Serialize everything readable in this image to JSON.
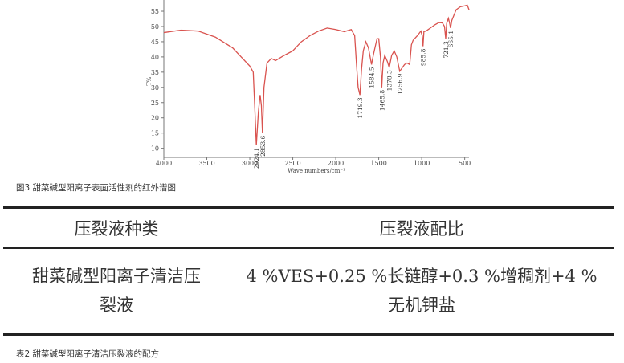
{
  "figure_caption": "图3 甜菜碱型阳离子表面活性剂的红外谱图",
  "chart_data": {
    "type": "line",
    "xlabel": "Wave numbers/cm⁻¹",
    "ylabel": "T%",
    "xlim": [
      4000,
      450
    ],
    "ylim": [
      7,
      58.7
    ],
    "x_reversed": true,
    "xticks": [
      4000,
      3500,
      3000,
      2500,
      2000,
      1500,
      1000,
      500
    ],
    "yticks": [
      10,
      15,
      20,
      25,
      30,
      35,
      40,
      45,
      50,
      55
    ],
    "grid": false,
    "line_color": "#d9534f",
    "series": [
      {
        "x": [
          4000,
          3800,
          3600,
          3400,
          3200,
          3100,
          3000,
          2960,
          2940,
          2924,
          2900,
          2880,
          2865,
          2853,
          2835,
          2800,
          2750,
          2700,
          2600,
          2500,
          2400,
          2300,
          2200,
          2100,
          2000,
          1900,
          1820,
          1780,
          1760,
          1740,
          1719,
          1700,
          1680,
          1650,
          1620,
          1584,
          1560,
          1520,
          1500,
          1480,
          1465,
          1450,
          1430,
          1400,
          1378,
          1350,
          1320,
          1290,
          1256,
          1200,
          1170,
          1140,
          1120,
          1100,
          1050,
          1010,
          995,
          985,
          975,
          950,
          900,
          850,
          800,
          760,
          735,
          721,
          710,
          690,
          675,
          665,
          650,
          600,
          550,
          500,
          470,
          450
        ],
        "y": [
          48,
          48.8,
          48.5,
          46.5,
          43,
          40,
          37,
          35,
          22,
          11,
          22,
          27.5,
          24,
          15,
          30,
          38,
          39.5,
          38.8,
          40.5,
          42,
          45,
          47,
          48.5,
          49.5,
          49,
          48.3,
          49,
          47,
          38,
          30,
          27.5,
          36,
          42,
          45,
          43,
          37.5,
          41,
          46,
          46,
          40,
          30,
          38,
          40.5,
          38.5,
          36.5,
          40.5,
          42,
          40,
          35.3,
          37.5,
          38,
          37.5,
          44,
          45.5,
          47,
          48.5,
          47,
          43.5,
          48.3,
          48.5,
          49.5,
          50.5,
          51.3,
          51.2,
          50,
          46,
          51,
          52.7,
          51,
          49.5,
          52,
          55.5,
          56.5,
          56.8,
          57,
          55.5
        ]
      }
    ],
    "annotations": [
      {
        "text": "2924.1",
        "x": 2924,
        "y": 11
      },
      {
        "text": "2853.6",
        "x": 2853,
        "y": 15
      },
      {
        "text": "1719.3",
        "x": 1719,
        "y": 27.5
      },
      {
        "text": "1584.5",
        "x": 1584,
        "y": 37.5
      },
      {
        "text": "1465.8",
        "x": 1465,
        "y": 30
      },
      {
        "text": "1378.3",
        "x": 1378,
        "y": 36.5
      },
      {
        "text": "1256.9",
        "x": 1256,
        "y": 35.3
      },
      {
        "text": "985.8",
        "x": 985,
        "y": 43.5
      },
      {
        "text": "721.3",
        "x": 721,
        "y": 46
      },
      {
        "text": "665.1",
        "x": 665,
        "y": 49.5
      }
    ]
  },
  "table": {
    "headers": [
      "压裂液种类",
      "压裂液配比"
    ],
    "rows": [
      {
        "type_line1": "甜菜碱型阳离子清洁压",
        "type_line2": "裂液",
        "ratio_line1": "4 %VES+0.25 %长链醇+0.3 %增稠剂+4 %",
        "ratio_line2": "无机钾盐"
      }
    ]
  },
  "table_caption": "表2 甜菜碱型阳离子清洁压裂液的配方"
}
